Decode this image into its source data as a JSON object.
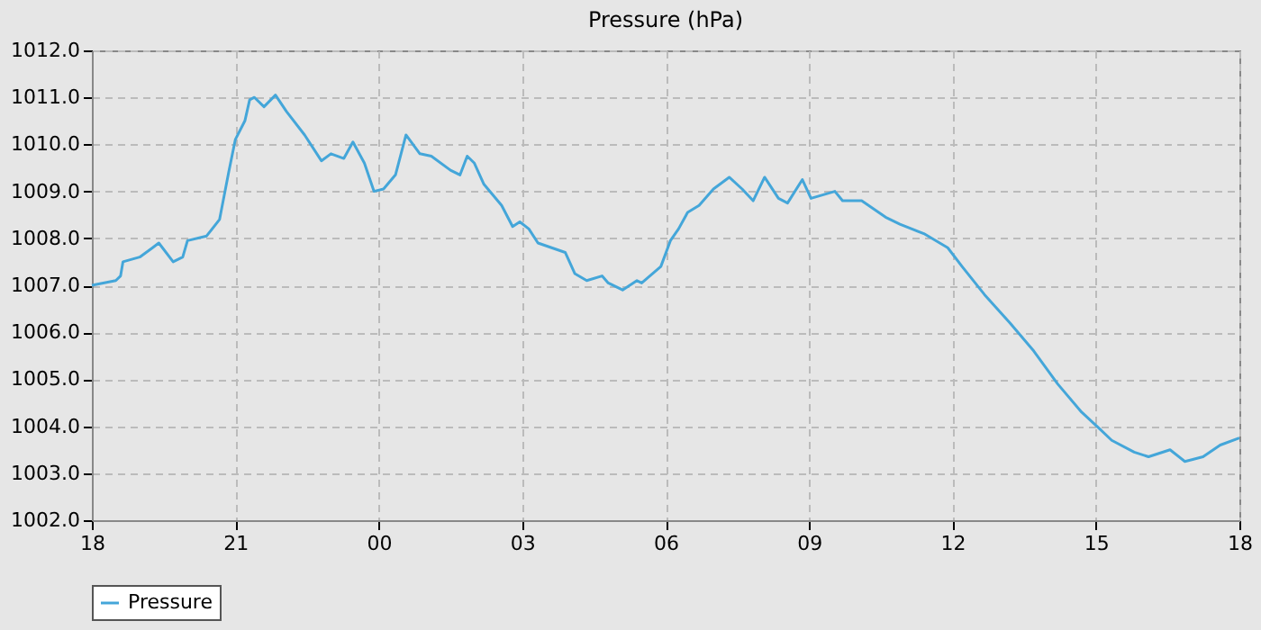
{
  "chart_data": {
    "type": "line",
    "title": "Pressure (hPa)",
    "xlim": [
      18,
      42
    ],
    "xticks": [
      {
        "value": 18,
        "label": "18"
      },
      {
        "value": 21,
        "label": "21"
      },
      {
        "value": 24,
        "label": "00"
      },
      {
        "value": 27,
        "label": "03"
      },
      {
        "value": 30,
        "label": "06"
      },
      {
        "value": 33,
        "label": "09"
      },
      {
        "value": 36,
        "label": "12"
      },
      {
        "value": 39,
        "label": "15"
      },
      {
        "value": 42,
        "label": "18"
      }
    ],
    "ylim": [
      1002,
      1012
    ],
    "yticks": [
      {
        "value": 1002,
        "label": "1002.0"
      },
      {
        "value": 1003,
        "label": "1003.0"
      },
      {
        "value": 1004,
        "label": "1004.0"
      },
      {
        "value": 1005,
        "label": "1005.0"
      },
      {
        "value": 1006,
        "label": "1006.0"
      },
      {
        "value": 1007,
        "label": "1007.0"
      },
      {
        "value": 1008,
        "label": "1008.0"
      },
      {
        "value": 1009,
        "label": "1009.0"
      },
      {
        "value": 1010,
        "label": "1010.0"
      },
      {
        "value": 1011,
        "label": "1011.0"
      },
      {
        "value": 1012,
        "label": "1012.0"
      }
    ],
    "grid": true,
    "legend": "bottom",
    "line_style": "solid",
    "marker": "none",
    "series": [
      {
        "name": "Pressure",
        "color": "#44a6d9",
        "x": [
          18,
          18.5,
          18.6,
          18.65,
          19.0,
          19.27,
          19.4,
          19.7,
          19.9,
          20.0,
          20.4,
          20.67,
          20.86,
          21.0,
          21.2,
          21.3,
          21.4,
          21.6,
          21.84,
          22.07,
          22.45,
          22.8,
          23.0,
          23.27,
          23.46,
          23.7,
          23.9,
          24.1,
          24.35,
          24.57,
          24.86,
          25.1,
          25.5,
          25.7,
          25.85,
          26.0,
          26.2,
          26.57,
          26.8,
          26.95,
          27.14,
          27.33,
          27.9,
          28.1,
          28.35,
          28.67,
          28.8,
          29.1,
          29.4,
          29.5,
          29.9,
          30.1,
          30.27,
          30.46,
          30.7,
          31.0,
          31.33,
          31.6,
          31.83,
          32.07,
          32.36,
          32.55,
          32.86,
          33.04,
          33.54,
          33.7,
          34.1,
          34.6,
          34.9,
          35.4,
          35.9,
          36.2,
          36.67,
          37.2,
          37.7,
          38.2,
          38.7,
          39.07,
          39.33,
          39.8,
          40.1,
          40.55,
          40.86,
          41.24,
          41.6,
          42
        ],
        "values": [
          1007.0,
          1007.1,
          1007.2,
          1007.5,
          1007.6,
          1007.8,
          1007.9,
          1007.5,
          1007.6,
          1007.95,
          1008.05,
          1008.4,
          1009.4,
          1010.1,
          1010.5,
          1010.95,
          1011.0,
          1010.8,
          1011.05,
          1010.7,
          1010.2,
          1009.65,
          1009.8,
          1009.7,
          1010.05,
          1009.6,
          1009.0,
          1009.05,
          1009.35,
          1010.2,
          1009.8,
          1009.75,
          1009.45,
          1009.35,
          1009.75,
          1009.6,
          1009.15,
          1008.7,
          1008.25,
          1008.35,
          1008.2,
          1007.9,
          1007.7,
          1007.25,
          1007.1,
          1007.2,
          1007.05,
          1006.9,
          1007.1,
          1007.05,
          1007.4,
          1007.95,
          1008.2,
          1008.55,
          1008.7,
          1009.05,
          1009.3,
          1009.05,
          1008.8,
          1009.3,
          1008.85,
          1008.75,
          1009.25,
          1008.85,
          1009.0,
          1008.8,
          1008.8,
          1008.45,
          1008.3,
          1008.1,
          1007.8,
          1007.4,
          1006.8,
          1006.2,
          1005.6,
          1004.9,
          1004.3,
          1003.95,
          1003.7,
          1003.45,
          1003.35,
          1003.5,
          1003.25,
          1003.35,
          1003.6,
          1003.75
        ]
      }
    ]
  }
}
